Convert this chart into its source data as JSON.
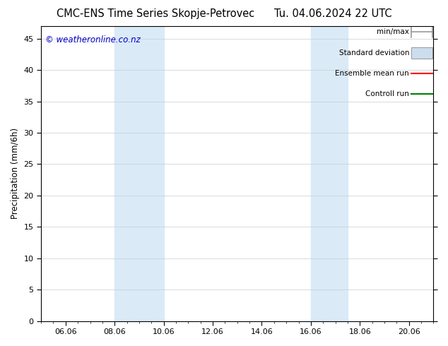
{
  "title_left": "CMC-ENS Time Series Skopje-Petrovec",
  "title_right": "Tu. 04.06.2024 22 UTC",
  "ylabel": "Precipitation (mm/6h)",
  "watermark": "© weatheronline.co.nz",
  "ylim": [
    0,
    47
  ],
  "yticks": [
    0,
    5,
    10,
    15,
    20,
    25,
    30,
    35,
    40,
    45
  ],
  "xlim": [
    0,
    16
  ],
  "xtick_labels": [
    "06.06",
    "08.06",
    "10.06",
    "12.06",
    "14.06",
    "16.06",
    "18.06",
    "20.06"
  ],
  "xtick_positions": [
    1.0,
    3.0,
    5.0,
    7.0,
    9.0,
    11.0,
    13.0,
    15.0
  ],
  "shaded_regions": [
    {
      "x_start": 3.0,
      "x_end": 5.0
    },
    {
      "x_start": 11.0,
      "x_end": 12.5
    }
  ],
  "shaded_color": "#daeaf7",
  "bg_color": "#ffffff",
  "legend_items": [
    {
      "label": "min/max",
      "color": "#999999",
      "style": "line_with_caps"
    },
    {
      "label": "Standard deviation",
      "color": "#ccdded",
      "style": "filled_box"
    },
    {
      "label": "Ensemble mean run",
      "color": "#ff0000",
      "style": "line"
    },
    {
      "label": "Controll run",
      "color": "#008000",
      "style": "line"
    }
  ],
  "watermark_color": "#0000cc",
  "title_fontsize": 10.5,
  "axis_fontsize": 8.5,
  "tick_fontsize": 8,
  "legend_fontsize": 7.5,
  "watermark_fontsize": 8.5
}
